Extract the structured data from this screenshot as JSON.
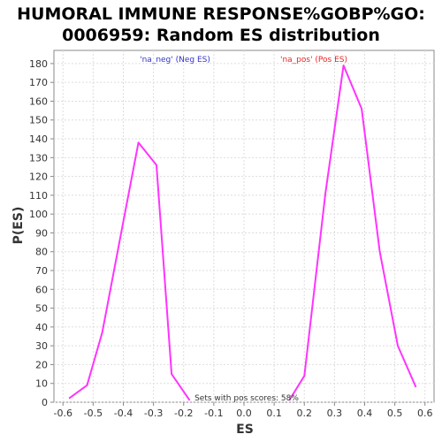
{
  "chart_data": {
    "type": "line",
    "title_line1": "HUMORAL IMMUNE RESPONSE%GOBP%GO:",
    "title_line2": "0006959: Random ES distribution",
    "xlabel": "ES",
    "ylabel": "P(ES)",
    "xlim": [
      -0.63,
      0.63
    ],
    "ylim": [
      0,
      187
    ],
    "xticks": [
      -0.6,
      -0.5,
      -0.4,
      -0.3,
      -0.2,
      -0.1,
      0.0,
      0.1,
      0.2,
      0.3,
      0.4,
      0.5,
      0.6
    ],
    "xtick_labels": [
      "-0.6",
      "-0.5",
      "-0.4",
      "-0.3",
      "-0.2",
      "-0.1",
      "0.0",
      "0.1",
      "0.2",
      "0.3",
      "0.4",
      "0.5",
      "0.6"
    ],
    "yticks": [
      0,
      10,
      20,
      30,
      40,
      50,
      60,
      70,
      80,
      90,
      100,
      110,
      120,
      130,
      140,
      150,
      160,
      170,
      180
    ],
    "grid": true,
    "line_color": "#ff33ff",
    "series": [
      {
        "legend": "'na_neg' (Neg ES)",
        "legend_color": "#3333cc",
        "points": [
          [
            -0.58,
            2
          ],
          [
            -0.52,
            9
          ],
          [
            -0.47,
            37
          ],
          [
            -0.4,
            96
          ],
          [
            -0.35,
            138
          ],
          [
            -0.29,
            126
          ],
          [
            -0.24,
            15
          ],
          [
            -0.18,
            1
          ]
        ]
      },
      {
        "legend": "'na_pos' (Pos ES)",
        "legend_color": "#ee2222",
        "points": [
          [
            0.15,
            1
          ],
          [
            0.2,
            14
          ],
          [
            0.27,
            111
          ],
          [
            0.33,
            179
          ],
          [
            0.39,
            156
          ],
          [
            0.45,
            80
          ],
          [
            0.51,
            30
          ],
          [
            0.57,
            8
          ]
        ]
      }
    ],
    "annotation": "Sets with pos scores: 58%"
  }
}
